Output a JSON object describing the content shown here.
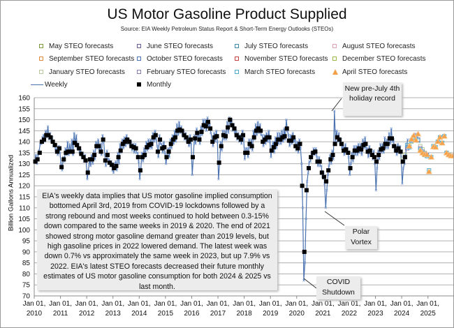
{
  "chart_data": {
    "type": "line",
    "title": "US Motor Gasoline Product Supplied",
    "subtitle": "Source: EIA Weekly Petroleum Status Report & Short-Term Energy Outlooks (STEOs)",
    "ylabel": "Billion Gallons Annualized",
    "ylim": [
      70,
      160
    ],
    "yticks": [
      70,
      75,
      80,
      85,
      90,
      95,
      100,
      105,
      110,
      115,
      120,
      125,
      130,
      135,
      140,
      145,
      150,
      155,
      160
    ],
    "xticks": [
      "Jan 01, 2010",
      "Jan 01, 2011",
      "Jan 01, 2012",
      "Jan 01, 2013",
      "Jan 01, 2014",
      "Jan 01, 2015",
      "Jan 01, 2016",
      "Jan 01, 2017",
      "Jan 01, 2018",
      "Jan 01, 2019",
      "Jan 01, 2020",
      "Jan 01, 2021",
      "Jan 01, 2022",
      "Jan 01, 2023",
      "Jan 01, 2024",
      "Jan 01, 2025"
    ],
    "grid": "horizontal",
    "legend_placement": "top",
    "legend": [
      {
        "name": "May STEO forecasts",
        "color": "#7a9a3a",
        "marker": "square-hollow"
      },
      {
        "name": "June STEO forecasts",
        "color": "#6a5a9a",
        "marker": "square-hollow"
      },
      {
        "name": "July STEO forecasts",
        "color": "#3a8aa8",
        "marker": "square-hollow"
      },
      {
        "name": "August STEO forecasts",
        "color": "#e0a0b0",
        "marker": "square-hollow"
      },
      {
        "name": "September STEO forecasts",
        "color": "#e08a3a",
        "marker": "square-hollow"
      },
      {
        "name": "October STEO forecasts",
        "color": "#4a72b0",
        "marker": "square-hollow"
      },
      {
        "name": "November STEO forecasts",
        "color": "#c04040",
        "marker": "square-hollow"
      },
      {
        "name": "December STEO forecasts",
        "color": "#9ab84a",
        "marker": "square-hollow"
      },
      {
        "name": "January STEO forecasts",
        "color": "#b8c89a",
        "marker": "square-hollow"
      },
      {
        "name": "February STEO forecasts",
        "color": "#8a7ab8",
        "marker": "square-hollow"
      },
      {
        "name": "March STEO forecasts",
        "color": "#4aa8c8",
        "marker": "square-hollow"
      },
      {
        "name": "April STEO forecasts",
        "color": "#f5a04a",
        "marker": "triangle"
      },
      {
        "name": "Weekly",
        "color": "#4a72b0",
        "marker": "line-x"
      },
      {
        "name": "Monthly",
        "color": "#000000",
        "marker": "square"
      }
    ],
    "weekly": {
      "2010": [
        131,
        134,
        130,
        134,
        136,
        139,
        139,
        142,
        143,
        140,
        145,
        142,
        147,
        141,
        144,
        140,
        142,
        138,
        139,
        136,
        137,
        134,
        138,
        135
      ],
      "2011": [
        130,
        127,
        133,
        131,
        137,
        134,
        140,
        134,
        139,
        135,
        141,
        134,
        144,
        139,
        143,
        137,
        139,
        135,
        136,
        133,
        135,
        131,
        134,
        131
      ],
      "2012": [
        123,
        127,
        132,
        129,
        134,
        130,
        136,
        132,
        140,
        137,
        141,
        136,
        139,
        134,
        143,
        140,
        134,
        129,
        136,
        132,
        132,
        129,
        131,
        127
      ],
      "2013": [
        126,
        130,
        131,
        127,
        135,
        130,
        139,
        135,
        141,
        137,
        142,
        138,
        143,
        139,
        141,
        138,
        140,
        136,
        139,
        135,
        139,
        135,
        135,
        131
      ],
      "2014": [
        123,
        128,
        135,
        131,
        137,
        133,
        140,
        136,
        141,
        137,
        141,
        137,
        144,
        140,
        145,
        141,
        138,
        133,
        143,
        139,
        139,
        135,
        140,
        135
      ],
      "2015": [
        130,
        134,
        137,
        133,
        141,
        137,
        143,
        139,
        145,
        140,
        148,
        143,
        149,
        144,
        147,
        143,
        145,
        141,
        144,
        140,
        142,
        138,
        143,
        139
      ],
      "2016": [
        125,
        133,
        143,
        139,
        146,
        142,
        143,
        139,
        147,
        143,
        150,
        146,
        150,
        145,
        151,
        147,
        148,
        144,
        142,
        138,
        144,
        140,
        145,
        140
      ],
      "2017": [
        123,
        130,
        140,
        136,
        145,
        141,
        145,
        141,
        149,
        144,
        151,
        148,
        150,
        145,
        148,
        144,
        145,
        141,
        144,
        140,
        143,
        139,
        145,
        141
      ],
      "2018": [
        132,
        137,
        137,
        133,
        141,
        137,
        141,
        136,
        145,
        141,
        148,
        143,
        149,
        144,
        148,
        143,
        143,
        138,
        143,
        139,
        144,
        140,
        145,
        140
      ],
      "2019": [
        133,
        138,
        140,
        135,
        142,
        137,
        144,
        139,
        144,
        139,
        145,
        140,
        146,
        141,
        150,
        145,
        143,
        138,
        143,
        139,
        144,
        140,
        141,
        136
      ],
      "2020": [
        140,
        135,
        141,
        137,
        130,
        110,
        77,
        85,
        105,
        122,
        126,
        131,
        131,
        135,
        134,
        137,
        134,
        137,
        133,
        129,
        133,
        129,
        129,
        124
      ],
      "2021": [
        126,
        121,
        110,
        118,
        125,
        129,
        134,
        130,
        136,
        132,
        154,
        140,
        145,
        140,
        144,
        139,
        141,
        137,
        138,
        134,
        139,
        135,
        137,
        133
      ],
      "2022": [
        125,
        130,
        135,
        131,
        138,
        134,
        138,
        134,
        139,
        135,
        139,
        134,
        141,
        137,
        142,
        137,
        137,
        133,
        138,
        134,
        136,
        132,
        136,
        130
      ],
      "2023": [
        118,
        128,
        136,
        132,
        139,
        135,
        139,
        135,
        142,
        137,
        141,
        137,
        144,
        139,
        146,
        140,
        141,
        136,
        138,
        134,
        139,
        135,
        138,
        133
      ],
      "2024": [
        121,
        128,
        130,
        134,
        138,
        141
      ]
    },
    "monthly": {
      "2010": [
        131,
        132,
        135,
        140,
        141,
        143,
        143,
        142,
        140,
        138.5,
        135.5,
        137
      ],
      "2011": [
        128.5,
        132,
        135,
        135.5,
        135.5,
        135.5,
        139.5,
        138.5,
        137,
        134.5,
        133,
        131.5
      ],
      "2012": [
        126,
        132,
        132,
        134,
        138,
        138,
        135.5,
        141,
        131.5,
        134,
        130.5,
        129.5
      ],
      "2013": [
        128,
        129,
        133,
        136,
        139,
        140,
        141,
        140,
        138,
        137.5,
        137,
        133
      ],
      "2014": [
        127,
        133,
        134,
        137.5,
        138.5,
        139,
        142,
        143,
        135.5,
        141,
        137,
        137.5
      ],
      "2015": [
        133,
        135.5,
        139,
        141,
        142,
        145,
        145.5,
        145,
        143,
        142,
        140,
        141
      ],
      "2016": [
        133,
        141.5,
        144,
        141,
        144.5,
        147.5,
        147,
        149,
        146,
        140,
        142,
        142.5
      ],
      "2017": [
        130.5,
        138,
        143,
        142.5,
        146.5,
        150,
        147.5,
        146,
        143,
        142,
        141,
        143
      ],
      "2018": [
        135,
        135,
        139,
        138,
        142,
        145,
        146,
        145,
        140,
        141,
        142,
        142
      ],
      "2019": [
        136,
        137.5,
        139,
        141,
        141,
        142,
        142.5,
        146,
        140.5,
        140.5,
        142,
        138
      ],
      "2020": [
        137,
        139,
        120,
        90,
        118,
        128,
        133,
        135,
        135.5,
        131,
        131,
        126
      ],
      "2021": [
        124,
        122,
        127,
        132,
        134,
        139,
        142,
        141,
        139,
        136,
        136.5,
        135
      ],
      "2022": [
        128,
        133,
        136,
        136,
        137,
        136.5,
        138.5,
        139,
        135.5,
        136,
        134,
        133
      ],
      "2023": [
        131,
        134,
        136.5,
        137,
        139,
        139,
        141.5,
        141.5,
        138,
        136,
        137,
        135.5
      ],
      "2024": [
        131,
        133
      ]
    },
    "forecasts": [
      {
        "name": "January STEO forecasts",
        "start": "2024-01",
        "values": [
          132,
          134,
          137,
          138,
          140,
          142,
          142.5,
          141,
          138,
          136.5,
          135,
          134
        ]
      },
      {
        "name": "February STEO forecasts",
        "start": "2024-02",
        "values": [
          133,
          137,
          137.5,
          140.5,
          142,
          143,
          141,
          137,
          135.5,
          134.5,
          134
        ]
      },
      {
        "name": "March STEO forecasts",
        "start": "2024-03",
        "values": [
          138.5,
          137.5,
          140.5,
          142,
          142.5,
          140.5,
          136.5,
          135,
          134,
          133.5,
          127,
          133,
          138,
          137.5,
          140,
          142,
          139.5,
          142.5,
          135,
          134,
          133.5,
          133.5
        ]
      },
      {
        "name": "April STEO forecasts",
        "start": "2024-04",
        "values": [
          138,
          141.2,
          142.8,
          140.7,
          143.5,
          136,
          134.9,
          134.3,
          134.1,
          126.4,
          133,
          137.7,
          137.5,
          140.1,
          142,
          139.4,
          142.5,
          134.9,
          134.1,
          133.6,
          133.5
        ]
      }
    ]
  },
  "annotations": {
    "main_text": "EIA's weekly data implies that US motor gasoline implied consumption bottomed April 3rd, 2019 from COVID-19 lockdowns followed by a strong rebound  and most weeks continued to hold between 0.3-15% down compared to the same weeks in 2019 & 2020. The end of 2021 showed strong motor gasoline demand greater than 2019 levels, but high gasoline prices in 2022 lowered demand.  The latest week was down 0.7% vs approximately the same week in 2023, but up 7.9% vs 2022. EIA's latest STEO forecasts decreased  their future monthly estimates of US motor gasoline consumption for both 2024 & 2025 vs last month.",
    "record": "New pre-July 4th holiday record",
    "polar": "Polar Vortex",
    "covid": "COVID Shutdown"
  }
}
